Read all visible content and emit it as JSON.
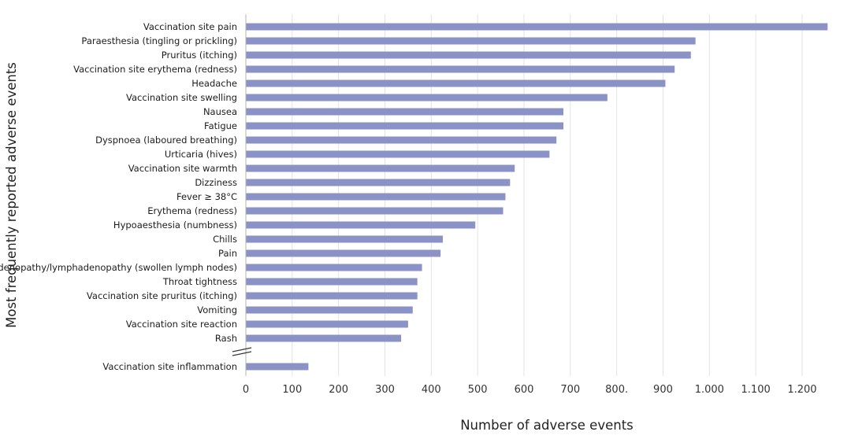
{
  "chart_data": {
    "type": "bar",
    "orientation": "horizontal",
    "xlabel": "Number of adverse events",
    "ylabel": "Most frequently reported adverse events",
    "xlim": [
      0,
      1250
    ],
    "grid": true,
    "axis_break_before_last": true,
    "bar_color": "#8a92c6",
    "categories": [
      "Vaccination site pain",
      "Paraesthesia (tingling or prickling)",
      "Pruritus (itching)",
      "Vaccination site erythema (redness)",
      "Headache",
      "Vaccination site swelling",
      "Nausea",
      "Fatigue",
      "Dyspnoea (laboured breathing)",
      "Urticaria (hives)",
      "Vaccination site warmth",
      "Dizziness",
      "Fever ≥ 38°C",
      "Erythema (redness)",
      "Hypoaesthesia (numbness)",
      "Chills",
      "Pain",
      "Lymphadenopathy/lymphadenopathy (swollen lymph nodes)",
      "Throat tightness",
      "Vaccination site pruritus (itching)",
      "Vomiting",
      "Vaccination site reaction",
      "Rash",
      "Vaccination site inflammation"
    ],
    "values": [
      1255,
      970,
      960,
      925,
      905,
      780,
      685,
      685,
      670,
      655,
      580,
      570,
      560,
      555,
      495,
      425,
      420,
      380,
      370,
      370,
      360,
      350,
      335,
      135
    ],
    "x_ticks": [
      0,
      100,
      200,
      300,
      400,
      500,
      600,
      700,
      800,
      900,
      1000,
      1100,
      1200
    ],
    "x_tick_labels": [
      "0",
      "100",
      "200",
      "300",
      "400",
      "500",
      "600",
      "700",
      "800.",
      "900",
      "1.000",
      "1.100",
      "1.200"
    ]
  }
}
